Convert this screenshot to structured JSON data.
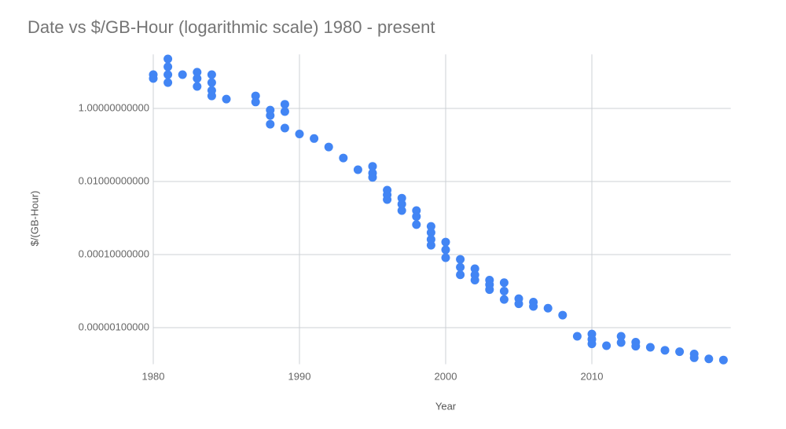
{
  "chart_data": {
    "type": "scatter",
    "title": "Date vs $/GB-Hour (logarithmic scale) 1980 - present",
    "x_label": "Year",
    "y_label": "$/(GB-Hour)",
    "log_y": true,
    "grid": true,
    "color": "#4285f4",
    "xlim": [
      1980,
      2019.5
    ],
    "xticks": [
      1980,
      1990,
      2000,
      2010
    ],
    "ylim": [
      1e-07,
      30
    ],
    "yticks": [
      {
        "value": 1,
        "label": "1.00000000000"
      },
      {
        "value": 0.01,
        "label": "0.01000000000"
      },
      {
        "value": 0.0001,
        "label": "0.00010000000"
      },
      {
        "value": 1e-06,
        "label": "0.00000100000"
      }
    ],
    "x": [
      1980,
      1980,
      1981,
      1981,
      1981,
      1981,
      1982,
      1983,
      1983,
      1983,
      1984,
      1984,
      1984,
      1984,
      1985,
      1987,
      1987,
      1988,
      1988,
      1988,
      1989,
      1989,
      1989,
      1990,
      1991,
      1992,
      1993,
      1994,
      1995,
      1995,
      1995,
      1996,
      1996,
      1996,
      1997,
      1997,
      1997,
      1998,
      1998,
      1998,
      1999,
      1999,
      1999,
      1999,
      2000,
      2000,
      2000,
      2001,
      2001,
      2001,
      2002,
      2002,
      2002,
      2003,
      2003,
      2003,
      2004,
      2004,
      2004,
      2005,
      2005,
      2006,
      2006,
      2007,
      2008,
      2009,
      2010,
      2010,
      2010,
      2011,
      2012,
      2012,
      2013,
      2013,
      2014,
      2015,
      2016,
      2017,
      2017,
      2018,
      2019
    ],
    "values": [
      8.4,
      6.6,
      22.6,
      13.8,
      8.4,
      5.1,
      8.4,
      9.8,
      6.6,
      4.0,
      8.4,
      5.1,
      3.1,
      2.2,
      1.8,
      2.2,
      1.5,
      0.9,
      0.64,
      0.37,
      1.3,
      0.82,
      0.29,
      0.2,
      0.15,
      0.088,
      0.044,
      0.021,
      0.026,
      0.017,
      0.013,
      0.0058,
      0.0043,
      0.0032,
      0.0035,
      0.0024,
      0.0016,
      0.0016,
      0.0011,
      0.00066,
      0.00059,
      0.0004,
      0.00026,
      0.00018,
      0.00022,
      0.000135,
      8.2e-05,
      7.4e-05,
      4.5e-05,
      2.8e-05,
      4.1e-05,
      2.8e-05,
      2e-05,
      2e-05,
      1.5e-05,
      1.1e-05,
      1.7e-05,
      1e-05,
      5.9e-06,
      6.2e-06,
      4.5e-06,
      5e-06,
      3.8e-06,
      3.4e-06,
      2.2e-06,
      5.8e-07,
      6.7e-07,
      4.8e-07,
      3.6e-07,
      3.2e-07,
      5.8e-07,
      3.9e-07,
      4e-07,
      3.1e-07,
      2.9e-07,
      2.4e-07,
      2.2e-07,
      1.9e-07,
      1.5e-07,
      1.4e-07,
      1.3e-07
    ]
  }
}
